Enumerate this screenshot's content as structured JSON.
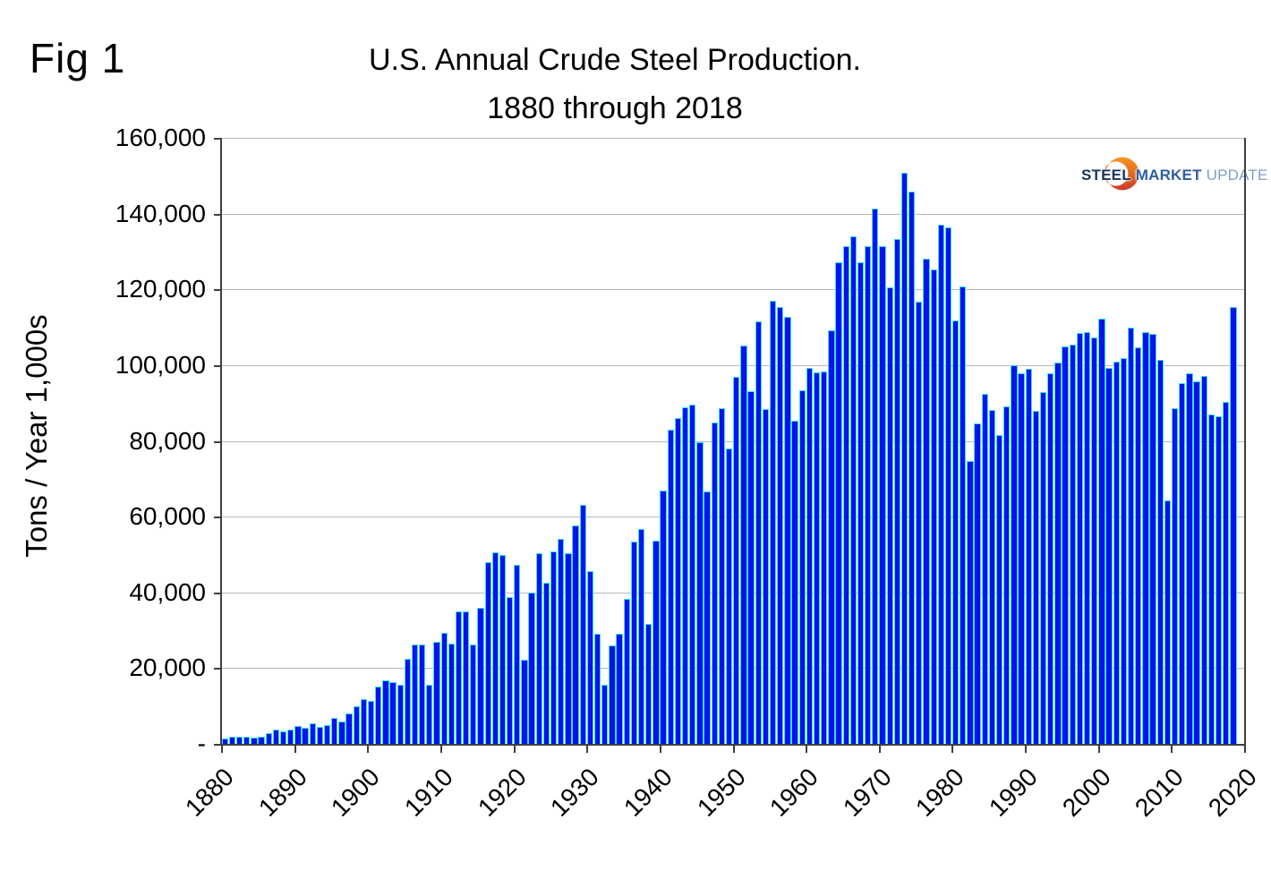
{
  "fig_label": "Fig 1",
  "title": "U.S. Annual Crude Steel Production.",
  "subtitle": "1880 through 2018",
  "y_axis": {
    "title": "Tons / Year 1,000s",
    "tick_labels": [
      "160,000",
      "140,000",
      "120,000",
      "100,000",
      "80,000",
      "60,000",
      "40,000",
      "20,000",
      "-"
    ],
    "tick_values": [
      160000,
      140000,
      120000,
      100000,
      80000,
      60000,
      40000,
      20000,
      0
    ]
  },
  "x_axis": {
    "tick_labels": [
      "1880",
      "1890",
      "1900",
      "1910",
      "1920",
      "1930",
      "1940",
      "1950",
      "1960",
      "1970",
      "1980",
      "1990",
      "2000",
      "2010",
      "2020"
    ]
  },
  "logo": {
    "steel": "STEEL",
    "market": "MARKET",
    "update": "UPDATE"
  },
  "colors": {
    "bar_fill": "#0712ee",
    "bar_edge": "#35e3ee",
    "gridline": "#b8b8b8",
    "axis": "#3f3f3f",
    "text": "#000000",
    "logo_steel": "#17365d",
    "logo_market": "#2e5e9e",
    "logo_update": "#7e9ec6",
    "logo_crescent_top": "#f7941e",
    "logo_crescent_bottom": "#cc3b2a"
  },
  "chart_data": {
    "type": "bar",
    "title": "U.S. Annual Crude Steel Production.",
    "subtitle": "1880 through 2018",
    "xlabel": "",
    "ylabel": "Tons / Year 1,000s",
    "ylim": [
      0,
      160000
    ],
    "grid": "horizontal",
    "legend": "none",
    "x": [
      1880,
      1881,
      1882,
      1883,
      1884,
      1885,
      1886,
      1887,
      1888,
      1889,
      1890,
      1891,
      1892,
      1893,
      1894,
      1895,
      1896,
      1897,
      1898,
      1899,
      1900,
      1901,
      1902,
      1903,
      1904,
      1905,
      1906,
      1907,
      1908,
      1909,
      1910,
      1911,
      1912,
      1913,
      1914,
      1915,
      1916,
      1917,
      1918,
      1919,
      1920,
      1921,
      1922,
      1923,
      1924,
      1925,
      1926,
      1927,
      1928,
      1929,
      1930,
      1931,
      1932,
      1933,
      1934,
      1935,
      1936,
      1937,
      1938,
      1939,
      1940,
      1941,
      1942,
      1943,
      1944,
      1945,
      1946,
      1947,
      1948,
      1949,
      1950,
      1951,
      1952,
      1953,
      1954,
      1955,
      1956,
      1957,
      1958,
      1959,
      1960,
      1961,
      1962,
      1963,
      1964,
      1965,
      1966,
      1967,
      1968,
      1969,
      1970,
      1971,
      1972,
      1973,
      1974,
      1975,
      1976,
      1977,
      1978,
      1979,
      1980,
      1981,
      1982,
      1983,
      1984,
      1985,
      1986,
      1987,
      1988,
      1989,
      1990,
      1991,
      1992,
      1993,
      1994,
      1995,
      1996,
      1997,
      1998,
      1999,
      2000,
      2001,
      2002,
      2003,
      2004,
      2005,
      2006,
      2007,
      2008,
      2009,
      2010,
      2011,
      2012,
      2013,
      2014,
      2015,
      2016,
      2017,
      2018
    ],
    "values": [
      1400,
      1780,
      1950,
      1870,
      1740,
      1920,
      2870,
      3740,
      3250,
      3790,
      4790,
      4370,
      5520,
      4500,
      4940,
      6850,
      5920,
      8020,
      10000,
      11920,
      11410,
      15090,
      16740,
      16280,
      15520,
      22430,
      26210,
      26170,
      15710,
      26830,
      29230,
      26520,
      35000,
      35060,
      26340,
      36010,
      47910,
      50470,
      49800,
      38830,
      47190,
      22160,
      39880,
      50340,
      42480,
      50840,
      54090,
      50330,
      57730,
      63210,
      45580,
      29060,
      15570,
      26020,
      29180,
      38180,
      53500,
      56640,
      31750,
      53650,
      66980,
      82840,
      86030,
      88840,
      89640,
      79700,
      66600,
      84890,
      88640,
      77980,
      96840,
      105200,
      93170,
      111610,
      88310,
      117040,
      115220,
      112720,
      85260,
      93450,
      99280,
      98010,
      98330,
      109260,
      127080,
      131460,
      134100,
      127210,
      131460,
      141260,
      131510,
      120440,
      133240,
      150800,
      145720,
      116640,
      128000,
      125330,
      137030,
      136340,
      111840,
      120830,
      74580,
      84620,
      92470,
      88260,
      81610,
      89150,
      99920,
      97940,
      98910,
      87900,
      92950,
      97880,
      100580,
      104930,
      105310,
      108560,
      108750,
      107400,
      112240,
      99320,
      100990,
      101900,
      109880,
      104610,
      108620,
      108190,
      101350,
      64340,
      88730,
      95240,
      97770,
      95770,
      97200,
      86910,
      86500,
      90180,
      115300
    ]
  }
}
